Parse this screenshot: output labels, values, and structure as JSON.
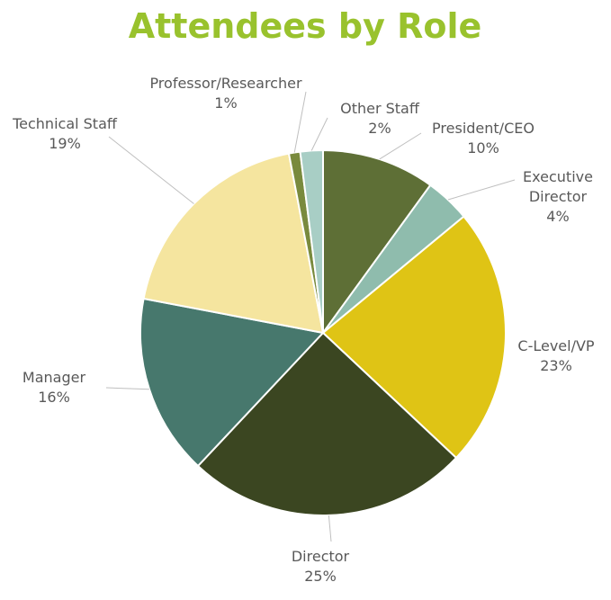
{
  "chart_data": {
    "type": "pie",
    "title": "Attendees by Role",
    "categories": [
      "President/CEO",
      "Executive Director",
      "C-Level/VP",
      "Director",
      "Manager",
      "Technical Staff",
      "Professor/Researcher",
      "Other Staff"
    ],
    "label_lines": [
      [
        "President/CEO"
      ],
      [
        "Executive",
        "Director"
      ],
      [
        "C-Level/VP"
      ],
      [
        "Director"
      ],
      [
        "Manager"
      ],
      [
        "Technical Staff"
      ],
      [
        "Professor/Researcher"
      ],
      [
        "Other Staff"
      ]
    ],
    "values": [
      10,
      4,
      23,
      25,
      16,
      19,
      1,
      2
    ],
    "percent_labels": [
      "10%",
      "4%",
      "23%",
      "25%",
      "16%",
      "19%",
      "1%",
      "2%"
    ],
    "colors": [
      "#5e6f36",
      "#8fbcad",
      "#dfc415",
      "#3b4621",
      "#47786d",
      "#f5e59f",
      "#798a3d",
      "#a8cec5"
    ],
    "title_color": "#99c22d",
    "label_color": "#595959",
    "start_angle_deg": 0,
    "direction": "clockwise",
    "legend": "none",
    "data_labels": "outside-with-leader-lines"
  }
}
